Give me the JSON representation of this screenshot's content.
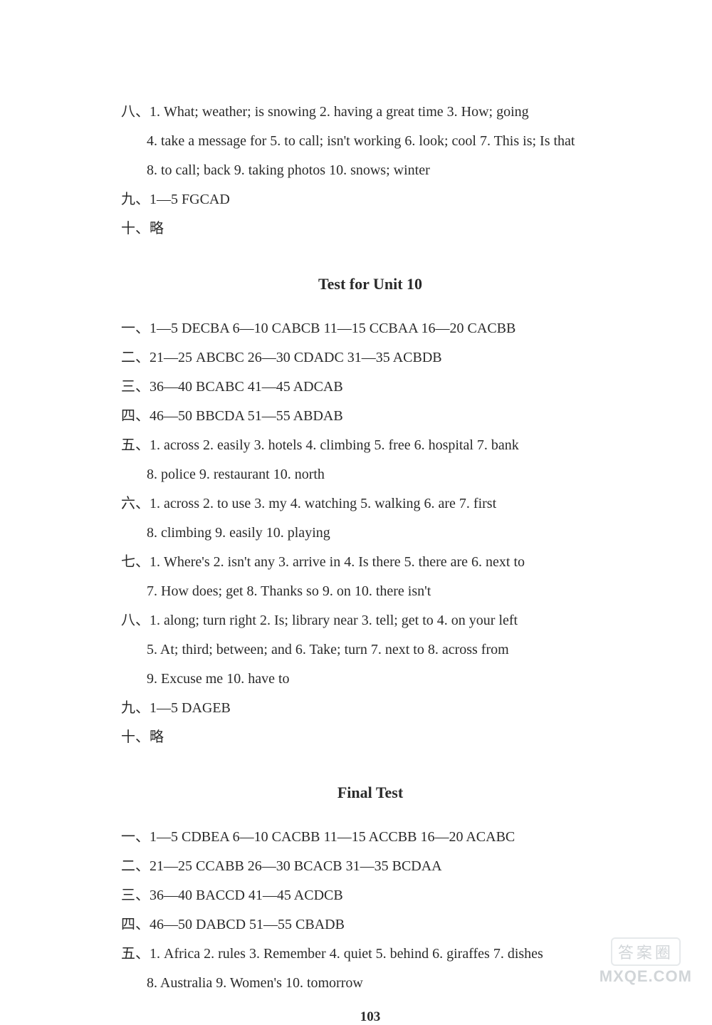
{
  "top": {
    "eight": [
      "八、1. What; weather; is snowing   2. having a great time   3. How; going",
      "4. take a message for   5. to call; isn't working   6. look; cool   7. This is; Is that",
      "8. to call; back   9. taking photos   10. snows; winter"
    ],
    "nine": "九、1—5 FGCAD",
    "ten": "十、略"
  },
  "unit10": {
    "title": "Test for Unit 10",
    "one": "一、1—5 DECBA   6—10 CABCB   11—15 CCBAA   16—20 CACBB",
    "two": "二、21—25 ABCBC   26—30 CDADC   31—35 ACBDB",
    "three": "三、36—40 BCABC   41—45 ADCAB",
    "four": "四、46—50 BBCDA   51—55 ABDAB",
    "five": [
      "五、1. across   2. easily   3. hotels   4. climbing   5. free   6. hospital   7. bank",
      "8. police   9. restaurant   10. north"
    ],
    "six": [
      "六、1. across   2. to use   3. my   4. watching   5. walking   6. are   7. first",
      "8. climbing   9. easily   10. playing"
    ],
    "seven": [
      "七、1. Where's   2. isn't any   3. arrive in   4. Is there   5. there are   6. next to",
      "7. How does; get   8. Thanks so   9. on   10. there isn't"
    ],
    "eight": [
      "八、1. along; turn right   2. Is; library near   3. tell; get to   4. on your left",
      "5. At; third; between; and   6. Take; turn   7. next to   8. across from",
      "9. Excuse me   10. have to"
    ],
    "nine": "九、1—5 DAGEB",
    "ten": "十、略"
  },
  "final": {
    "title": "Final Test",
    "one": "一、1—5 CDBEA   6—10 CACBB   11—15 ACCBB   16—20 ACABC",
    "two": "二、21—25 CCABB   26—30 BCACB   31—35 BCDAA",
    "three": "三、36—40 BACCD   41—45 ACDCB",
    "four": "四、46—50 DABCD   51—55 CBADB",
    "five": [
      "五、1. Africa   2. rules   3. Remember   4. quiet   5. behind   6. giraffes   7. dishes",
      "8. Australia   9. Women's   10. tomorrow"
    ]
  },
  "pageNumber": "103",
  "watermark": {
    "top": "答案圈",
    "bottom": "MXQE.COM"
  }
}
